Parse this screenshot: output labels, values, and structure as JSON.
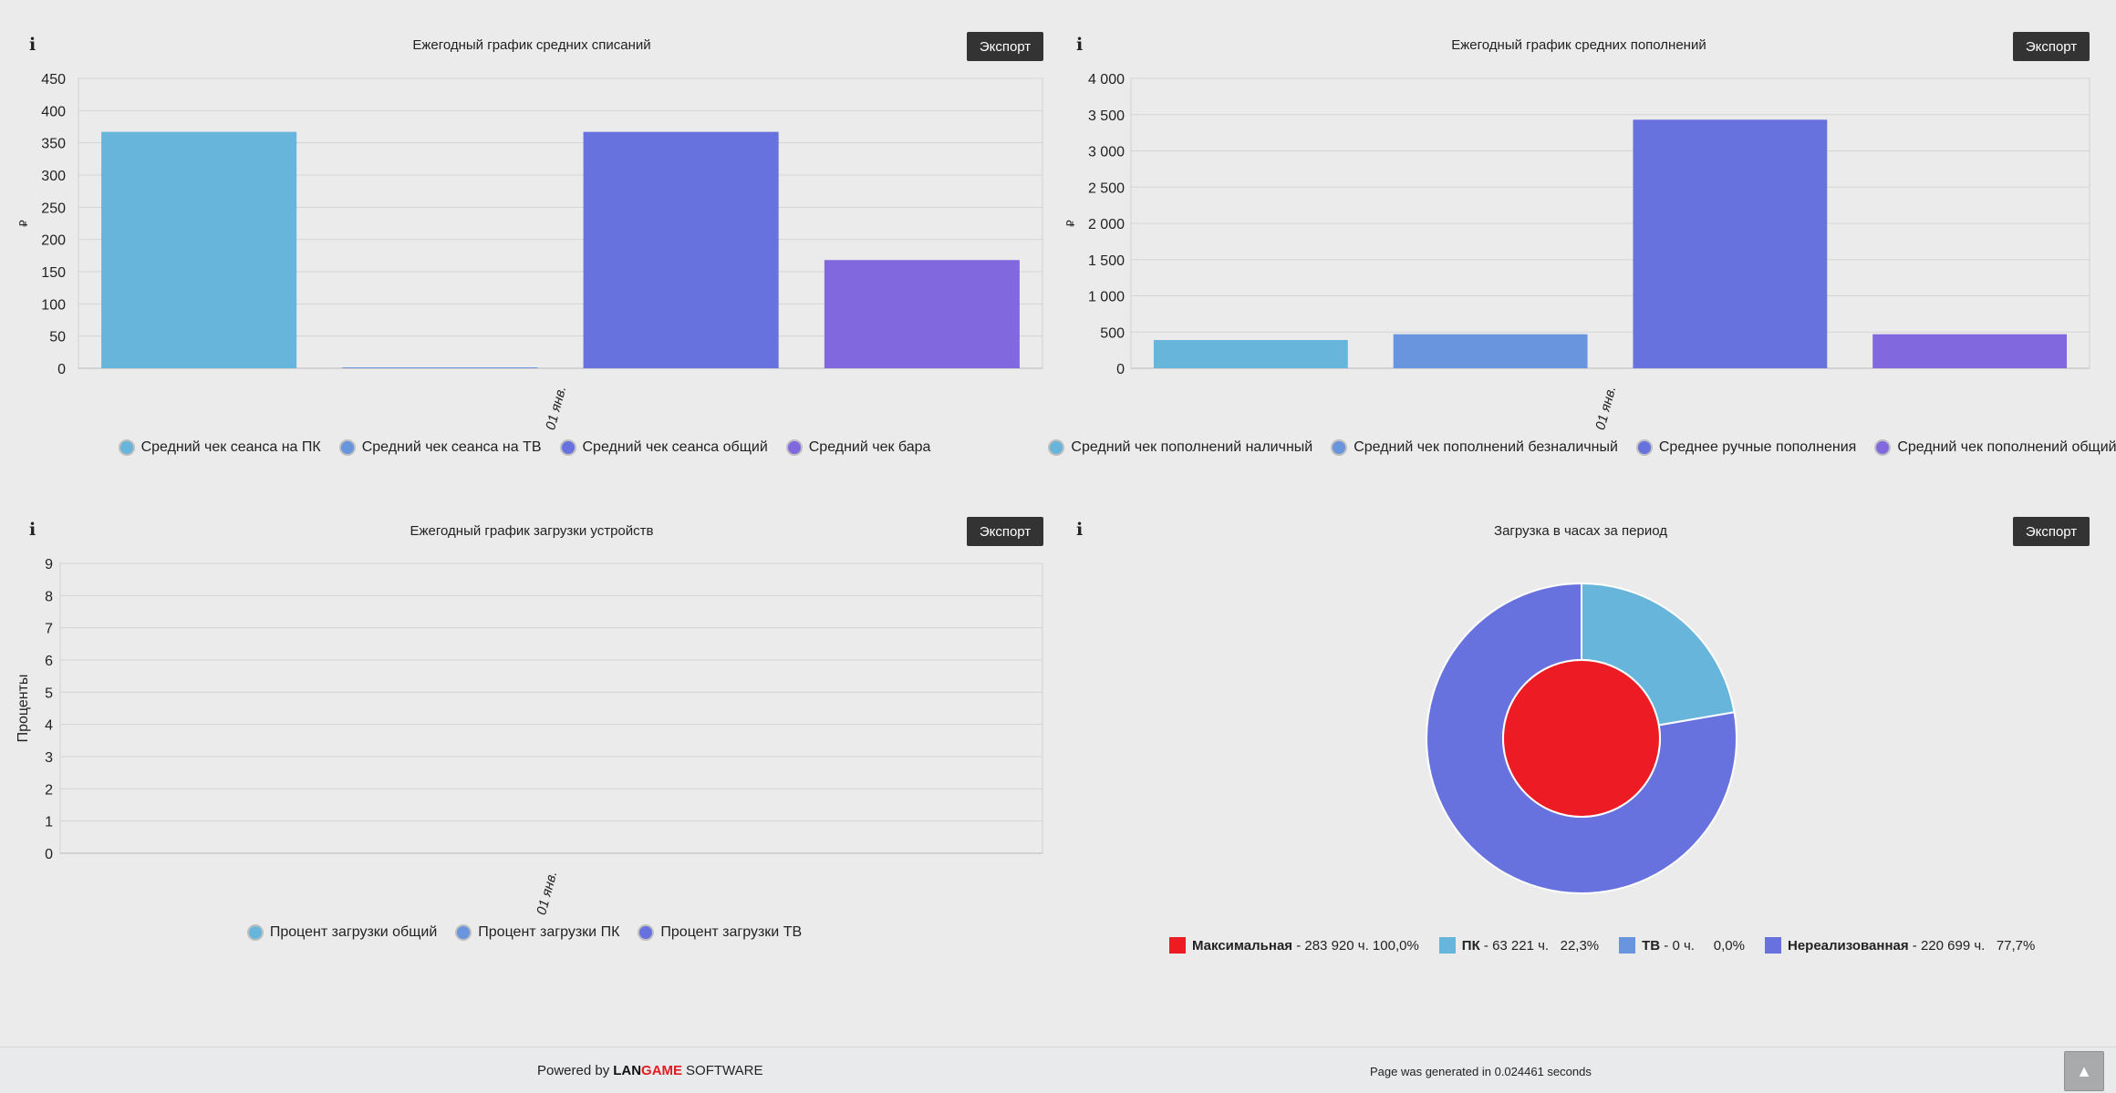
{
  "export_label": "Экспорт",
  "chart_data": [
    {
      "id": "c1",
      "type": "bar",
      "title": "Ежегодный график средних списаний",
      "ylabel": "₽",
      "category": "01 янв.",
      "ylim": [
        0,
        450
      ],
      "yticks": [
        "0",
        "50",
        "100",
        "150",
        "200",
        "250",
        "300",
        "350",
        "400",
        "450"
      ],
      "ytick_values": [
        0,
        50,
        100,
        150,
        200,
        250,
        300,
        350,
        400,
        450
      ],
      "series": [
        {
          "name": "Средний чек сеанса на ПК",
          "value": 367,
          "color": "#68b5dc"
        },
        {
          "name": "Средний чек сеанса на ТВ",
          "value": 1,
          "color": "#6895de"
        },
        {
          "name": "Средний чек сеанса общий",
          "value": 367,
          "color": "#6872de"
        },
        {
          "name": "Средний чек бара",
          "value": 168,
          "color": "#8168de"
        }
      ]
    },
    {
      "id": "c2",
      "type": "bar",
      "title": "Ежегодный график средних пополнений",
      "ylabel": "₽",
      "category": "01 янв.",
      "ylim": [
        0,
        4000
      ],
      "yticks": [
        "0",
        "500",
        "1 000",
        "1 500",
        "2 000",
        "2 500",
        "3 000",
        "3 500",
        "4 000"
      ],
      "ytick_values": [
        0,
        500,
        1000,
        1500,
        2000,
        2500,
        3000,
        3500,
        4000
      ],
      "series": [
        {
          "name": "Средний чек пополнений наличный",
          "value": 390,
          "color": "#68b5dc"
        },
        {
          "name": "Средний чек пополнений безналичный",
          "value": 470,
          "color": "#6895de"
        },
        {
          "name": "Среднее ручные пополнения",
          "value": 3430,
          "color": "#6872de"
        },
        {
          "name": "Средний чек пополнений общий",
          "value": 470,
          "color": "#8168de"
        }
      ]
    },
    {
      "id": "c3",
      "type": "bar",
      "title": "Ежегодный график загрузки устройств",
      "ylabel": "Проценты",
      "category": "01 янв.",
      "ylim": [
        0,
        9
      ],
      "yticks": [
        "0",
        "1",
        "2",
        "3",
        "4",
        "5",
        "6",
        "7",
        "8",
        "9"
      ],
      "ytick_values": [
        0,
        1,
        2,
        3,
        4,
        5,
        6,
        7,
        8,
        9
      ],
      "series": [
        {
          "name": "Процент загрузки общий",
          "value": 0,
          "color": "#68b5dc"
        },
        {
          "name": "Процент загрузки ПК",
          "value": 0,
          "color": "#6895de"
        },
        {
          "name": "Процент загрузки ТВ",
          "value": 0,
          "color": "#6872de"
        }
      ]
    },
    {
      "id": "c4",
      "type": "pie",
      "title": "Загрузка в часах за период",
      "inner": [
        {
          "name": "Максимальная",
          "detail": " - 283 920 ч. 100,0%",
          "value": 100.0,
          "color": "#ed1c24"
        }
      ],
      "outer": [
        {
          "name": "ПК",
          "detail": " - 63 221 ч.   22,3%",
          "value": 22.3,
          "color": "#68b5dc"
        },
        {
          "name": "ТВ",
          "detail": " - 0 ч.     0,0%",
          "value": 0.0,
          "color": "#6895de"
        },
        {
          "name": "Нереализованная",
          "detail": " - 220 699 ч.   77,7%",
          "value": 77.7,
          "color": "#6872de"
        }
      ]
    }
  ],
  "footer": {
    "powered_by": "Powered by",
    "logo_lan": "LAN",
    "logo_game": "GAME",
    "software": "SOFTWARE",
    "generated": "Page was generated in 0.024461 seconds"
  },
  "scroll_top_icon": "chevron-up-icon"
}
